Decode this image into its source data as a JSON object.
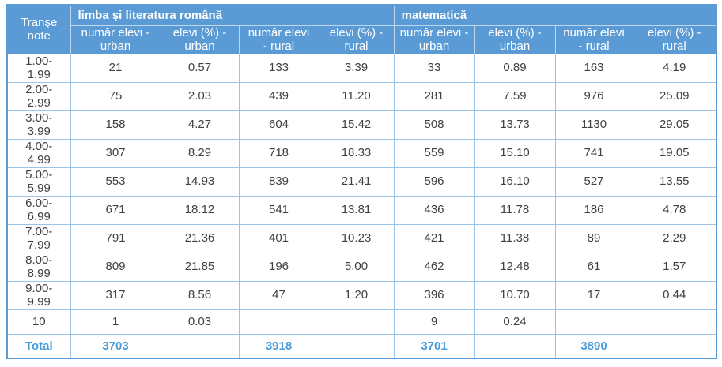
{
  "chart_data": {
    "type": "table",
    "corner_header": "Tranşe\nnote",
    "groups": [
      {
        "label": "limba şi literatura română",
        "columns": [
          "număr elevi -\nurban",
          "elevi (%) -\nurban",
          "număr elevi\n- rural",
          "elevi (%) -\nrural"
        ]
      },
      {
        "label": "matematică",
        "columns": [
          "număr elevi -\nurban",
          "elevi (%) -\nurban",
          "număr elevi\n- rural",
          "elevi (%) -\nrural"
        ]
      }
    ],
    "rows": [
      {
        "label": "1.00-\n1.99",
        "values": [
          "21",
          "0.57",
          "133",
          "3.39",
          "33",
          "0.89",
          "163",
          "4.19"
        ]
      },
      {
        "label": "2.00-\n2.99",
        "values": [
          "75",
          "2.03",
          "439",
          "11.20",
          "281",
          "7.59",
          "976",
          "25.09"
        ]
      },
      {
        "label": "3.00-\n3.99",
        "values": [
          "158",
          "4.27",
          "604",
          "15.42",
          "508",
          "13.73",
          "1130",
          "29.05"
        ]
      },
      {
        "label": "4.00-\n4.99",
        "values": [
          "307",
          "8.29",
          "718",
          "18.33",
          "559",
          "15.10",
          "741",
          "19.05"
        ]
      },
      {
        "label": "5.00-\n5.99",
        "values": [
          "553",
          "14.93",
          "839",
          "21.41",
          "596",
          "16.10",
          "527",
          "13.55"
        ]
      },
      {
        "label": "6.00-\n6.99",
        "values": [
          "671",
          "18.12",
          "541",
          "13.81",
          "436",
          "11.78",
          "186",
          "4.78"
        ]
      },
      {
        "label": "7.00-\n7.99",
        "values": [
          "791",
          "21.36",
          "401",
          "10.23",
          "421",
          "11.38",
          "89",
          "2.29"
        ]
      },
      {
        "label": "8.00-\n8.99",
        "values": [
          "809",
          "21.85",
          "196",
          "5.00",
          "462",
          "12.48",
          "61",
          "1.57"
        ]
      },
      {
        "label": "9.00-\n9.99",
        "values": [
          "317",
          "8.56",
          "47",
          "1.20",
          "396",
          "10.70",
          "17",
          "0.44"
        ]
      },
      {
        "label": "10",
        "values": [
          "1",
          "0.03",
          "",
          "",
          "9",
          "0.24",
          "",
          ""
        ]
      }
    ],
    "total_row": {
      "label": "Total",
      "values": [
        "3703",
        "",
        "3918",
        "",
        "3701",
        "",
        "3890",
        ""
      ]
    }
  },
  "colors": {
    "header_bg": "#5B9BD5",
    "header_text": "#FFFFFF",
    "body_text": "#404040",
    "total_text": "#4A9CDB",
    "border_inner": "#9DC3E6",
    "border_outer": "#5B9BD5",
    "header_divider": "#BDD7EE",
    "page_bg": "#FFFFFF"
  }
}
